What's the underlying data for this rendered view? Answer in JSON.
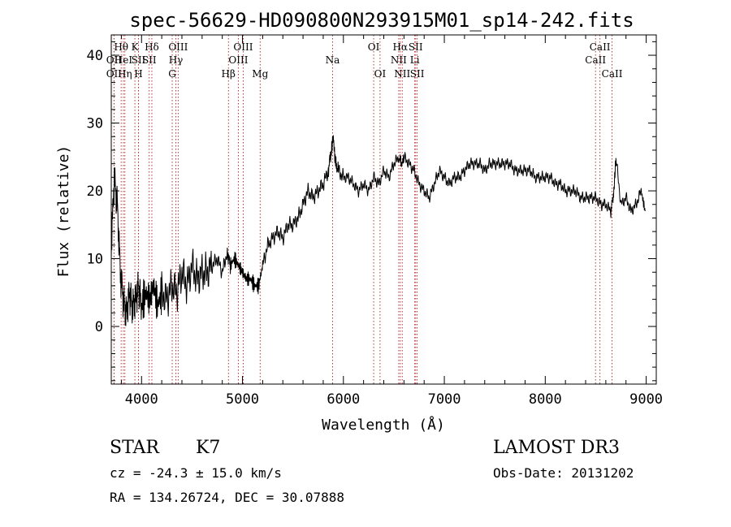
{
  "chart_data": {
    "type": "line",
    "title": "spec-56629-HD090800N293915M01_sp14-242.fits",
    "xlabel": "Wavelength (Å)",
    "ylabel": "Flux (relative)",
    "xlim": [
      3700,
      9100
    ],
    "ylim": [
      -8.5,
      43
    ],
    "x_ticks": [
      4000,
      5000,
      6000,
      7000,
      8000,
      9000
    ],
    "y_ticks": [
      0,
      10,
      20,
      30,
      40
    ],
    "x_tick_labels": [
      "4000",
      "5000",
      "6000",
      "7000",
      "8000",
      "9000"
    ],
    "y_tick_labels": [
      "0",
      "10",
      "20",
      "30",
      "40"
    ],
    "grid": false,
    "series": [
      {
        "x": [
          3700,
          3730,
          3760,
          3790,
          3820,
          3850,
          3880,
          3910,
          3940,
          3970,
          4000,
          4040,
          4080,
          4120,
          4160,
          4200,
          4250,
          4300,
          4350,
          4400,
          4450,
          4500,
          4550,
          4600,
          4650,
          4700,
          4750,
          4800,
          4850,
          4880,
          4920,
          4960,
          5000,
          5040,
          5080,
          5120,
          5160,
          5200,
          5250,
          5300,
          5350,
          5400,
          5450,
          5500,
          5550,
          5600,
          5650,
          5700,
          5750,
          5800,
          5850,
          5880,
          5900,
          5920,
          5950,
          6000,
          6050,
          6100,
          6150,
          6200,
          6250,
          6300,
          6350,
          6400,
          6450,
          6500,
          6550,
          6580,
          6600,
          6650,
          6700,
          6750,
          6800,
          6850,
          6900,
          6950,
          7000,
          7050,
          7100,
          7150,
          7200,
          7250,
          7300,
          7350,
          7400,
          7450,
          7500,
          7550,
          7600,
          7650,
          7700,
          7750,
          7800,
          7850,
          7900,
          7950,
          8000,
          8050,
          8100,
          8150,
          8200,
          8250,
          8300,
          8350,
          8400,
          8450,
          8500,
          8550,
          8600,
          8650,
          8680,
          8700,
          8750,
          8800,
          8850,
          8900,
          8950,
          8990
        ],
        "y": [
          12,
          22,
          18,
          8,
          4,
          2,
          5,
          3,
          4,
          6,
          3,
          5,
          4,
          6,
          3,
          5,
          4,
          6,
          5,
          8,
          6,
          9,
          7,
          8,
          8,
          9,
          10,
          8,
          11,
          9,
          10,
          9,
          8,
          7,
          7,
          6,
          6,
          9,
          12,
          13,
          14,
          13,
          15,
          15,
          16,
          18,
          20,
          19,
          20,
          21,
          23,
          26,
          28,
          24,
          23,
          22,
          22,
          21,
          20,
          21,
          20,
          22,
          21,
          23,
          22,
          24,
          25,
          24,
          25,
          24,
          23,
          21,
          20,
          19,
          21,
          23,
          22,
          21,
          22,
          22,
          23,
          24,
          24,
          24,
          23,
          24,
          24,
          24,
          24,
          24,
          23,
          23,
          23,
          23,
          22,
          22,
          22,
          22,
          21,
          21,
          20,
          20,
          20,
          19,
          19,
          19,
          19,
          18,
          18,
          17,
          20,
          25,
          18,
          19,
          17,
          18,
          20,
          17
        ]
      }
    ],
    "lines": [
      {
        "label": "OII",
        "x": 3727,
        "row": 3
      },
      {
        "label": "Hθ",
        "x": 3798,
        "row": 1
      },
      {
        "label": "OII",
        "x": 3727,
        "row": 2
      },
      {
        "label": "HeI",
        "x": 3820,
        "row": 2
      },
      {
        "label": "Hη",
        "x": 3835,
        "row": 3
      },
      {
        "label": "K",
        "x": 3934,
        "row": 1
      },
      {
        "label": "H",
        "x": 3969,
        "row": 3
      },
      {
        "label": "SII",
        "x": 3970,
        "row": 2
      },
      {
        "label": "Hδ",
        "x": 4102,
        "row": 1
      },
      {
        "label": "SII",
        "x": 4076,
        "row": 2
      },
      {
        "label": "G",
        "x": 4304,
        "row": 3
      },
      {
        "label": "OIII",
        "x": 4363,
        "row": 1
      },
      {
        "label": "Hγ",
        "x": 4340,
        "row": 2
      },
      {
        "label": "Hβ",
        "x": 4861,
        "row": 3
      },
      {
        "label": "OIII",
        "x": 5007,
        "row": 1
      },
      {
        "label": "OIII",
        "x": 4959,
        "row": 2
      },
      {
        "label": "Mg",
        "x": 5175,
        "row": 3
      },
      {
        "label": "Na",
        "x": 5893,
        "row": 2
      },
      {
        "label": "OI",
        "x": 6300,
        "row": 1
      },
      {
        "label": "OI",
        "x": 6363,
        "row": 3
      },
      {
        "label": "Hα",
        "x": 6563,
        "row": 1
      },
      {
        "label": "NII",
        "x": 6548,
        "row": 2
      },
      {
        "label": "NII",
        "x": 6583,
        "row": 3
      },
      {
        "label": "SII",
        "x": 6716,
        "row": 1
      },
      {
        "label": "Li",
        "x": 6707,
        "row": 2
      },
      {
        "label": "SII",
        "x": 6731,
        "row": 3
      },
      {
        "label": "CaII",
        "x": 8498,
        "row": 2
      },
      {
        "label": "CaII",
        "x": 8542,
        "row": 1
      },
      {
        "label": "CaII",
        "x": 8662,
        "row": 3
      }
    ]
  },
  "info": {
    "object_class": "STAR",
    "subclass": "K7",
    "survey": "LAMOST DR3",
    "redshift": "cz = -24.3 ± 15.0 km/s",
    "obs_date": "Obs-Date: 20131202",
    "coords": "RA = 134.26724, DEC =  30.07888"
  }
}
